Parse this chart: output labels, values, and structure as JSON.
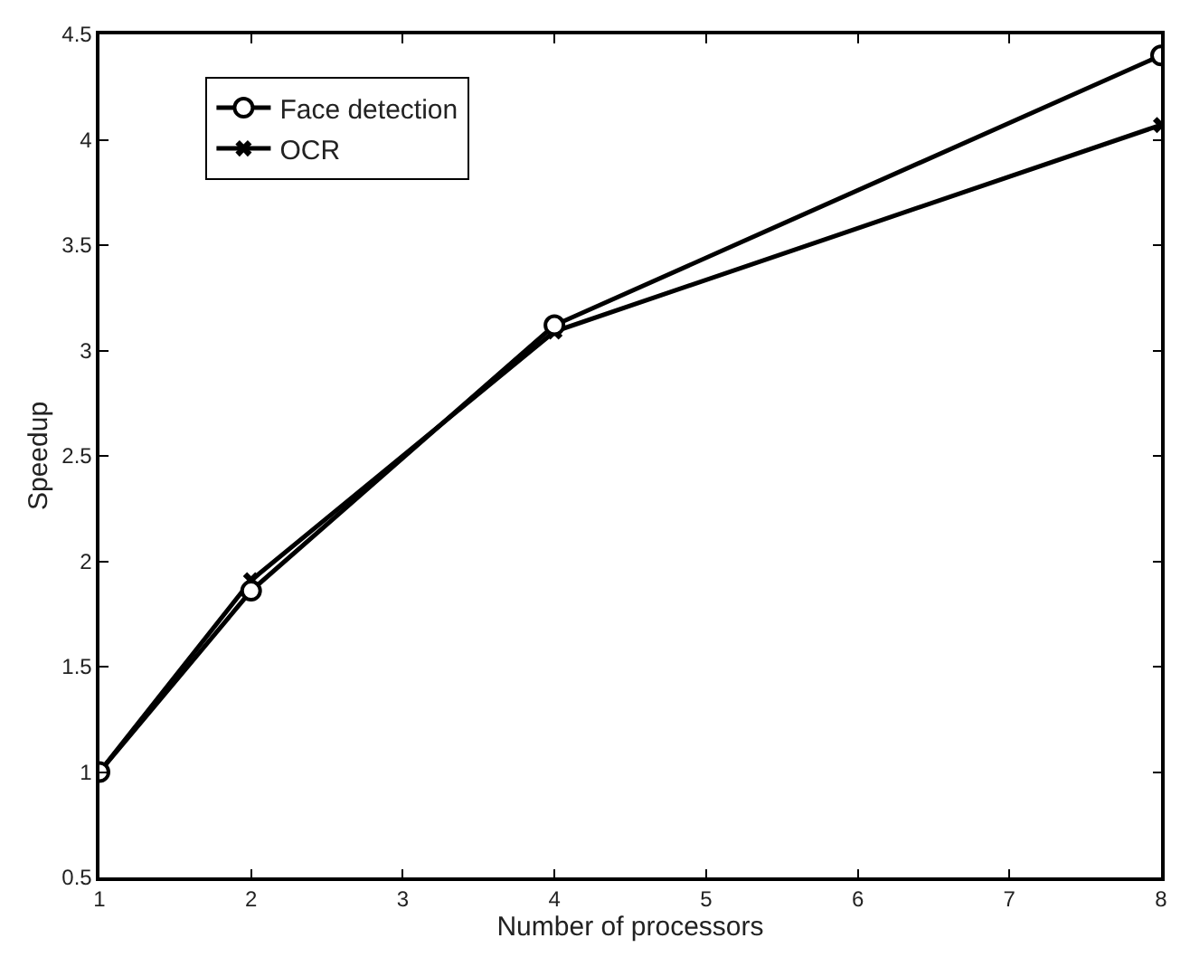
{
  "chart_data": {
    "type": "line",
    "xlabel": "Number of processors",
    "ylabel": "Speedup",
    "x": [
      1,
      2,
      4,
      8
    ],
    "series": [
      {
        "name": "Face detection",
        "color": "#000000",
        "values": [
          1,
          1.86,
          3.12,
          4.4
        ],
        "marker": "circle"
      },
      {
        "name": "OCR",
        "color": "#000000",
        "values": [
          1,
          1.91,
          3.09,
          4.07
        ],
        "marker": "cross"
      }
    ],
    "xlim": [
      1,
      8
    ],
    "xticks": [
      1,
      2,
      3,
      4,
      5,
      6,
      7,
      8
    ],
    "ylim": [
      0.5,
      4.5
    ],
    "yticks": [
      0.5,
      1,
      1.5,
      2,
      2.5,
      3,
      3.5,
      4,
      4.5
    ],
    "legend": "top left",
    "line_style": "solid"
  }
}
